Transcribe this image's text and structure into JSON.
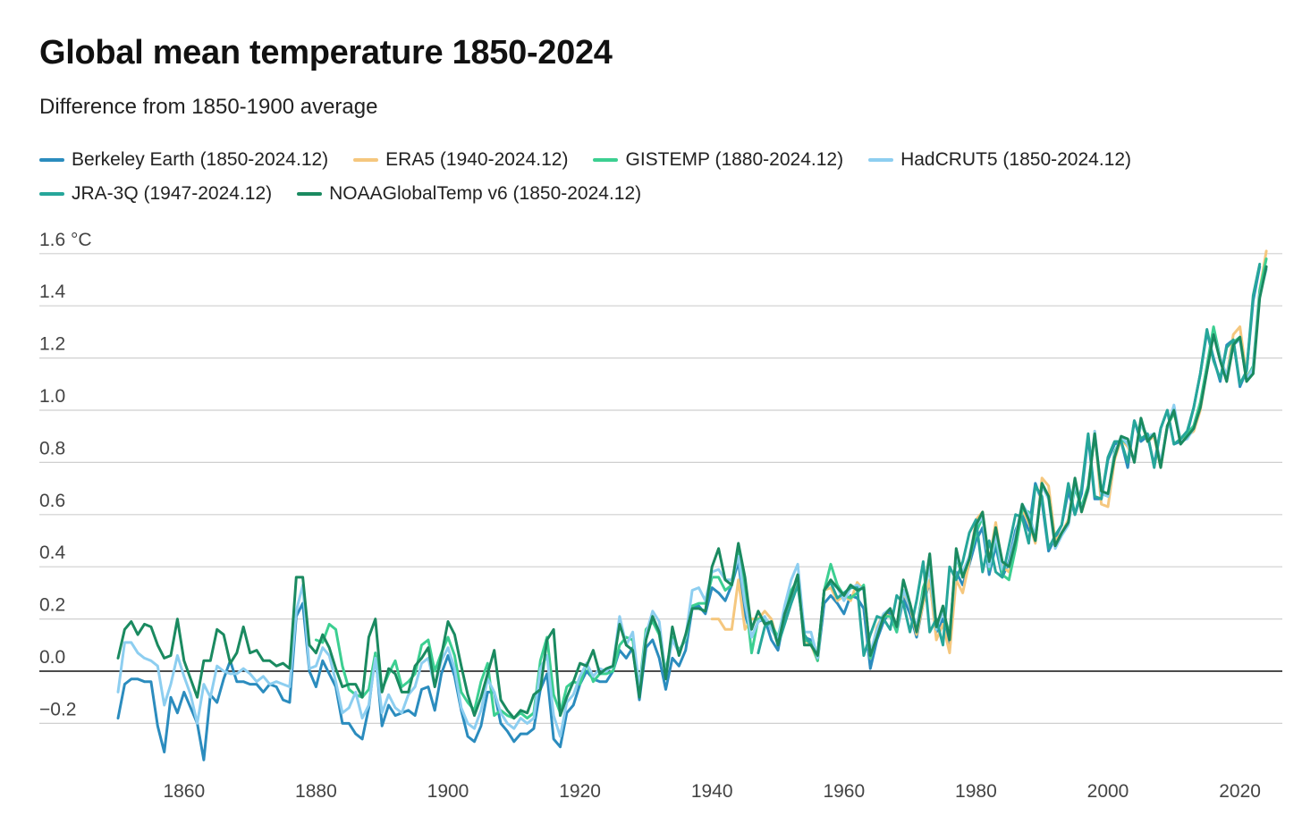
{
  "chart_data": {
    "type": "line",
    "title": "Global mean temperature 1850-2024",
    "subtitle": "Difference from 1850-1900 average",
    "xlabel": "",
    "ylabel": "",
    "y_unit": "°C",
    "xlim": [
      1850,
      2024
    ],
    "ylim": [
      -0.3,
      1.6
    ],
    "y_ticks": [
      -0.2,
      0.0,
      0.2,
      0.4,
      0.6,
      0.8,
      1.0,
      1.2,
      1.4,
      1.6
    ],
    "y_tick_labels": [
      "−0.2",
      "0.0",
      "0.2",
      "0.4",
      "0.6",
      "0.8",
      "1.0",
      "1.2",
      "1.4",
      "1.6 °C"
    ],
    "x_ticks": [
      1860,
      1880,
      1900,
      1920,
      1940,
      1960,
      1980,
      2000,
      2020
    ],
    "x_tick_labels": [
      "1860",
      "1880",
      "1900",
      "1920",
      "1940",
      "1960",
      "1980",
      "2000",
      "2020"
    ],
    "grid": true,
    "legend_position": "top",
    "series": [
      {
        "name": "Berkeley Earth (1850-2024.12)",
        "color": "#2b8cbe",
        "x_start": 1850,
        "values": [
          -0.18,
          -0.05,
          -0.03,
          -0.03,
          -0.04,
          -0.04,
          -0.21,
          -0.31,
          -0.1,
          -0.16,
          -0.08,
          -0.14,
          -0.2,
          -0.34,
          -0.09,
          -0.12,
          -0.03,
          0.04,
          -0.04,
          -0.04,
          -0.05,
          -0.05,
          -0.08,
          -0.05,
          -0.06,
          -0.11,
          -0.12,
          0.21,
          0.26,
          0.0,
          -0.06,
          0.04,
          -0.01,
          -0.06,
          -0.2,
          -0.2,
          -0.24,
          -0.26,
          -0.14,
          0.07,
          -0.21,
          -0.13,
          -0.17,
          -0.16,
          -0.15,
          -0.17,
          -0.07,
          -0.06,
          -0.15,
          -0.01,
          0.06,
          -0.02,
          -0.15,
          -0.25,
          -0.27,
          -0.21,
          -0.08,
          -0.08,
          -0.2,
          -0.23,
          -0.27,
          -0.24,
          -0.24,
          -0.22,
          -0.07,
          -0.01,
          -0.26,
          -0.29,
          -0.16,
          -0.13,
          -0.05,
          0.0,
          -0.03,
          -0.04,
          -0.04,
          0.0,
          0.08,
          0.05,
          0.09,
          -0.11,
          0.09,
          0.12,
          0.05,
          -0.07,
          0.05,
          0.02,
          0.08,
          0.24,
          0.25,
          0.22,
          0.32,
          0.3,
          0.27,
          0.33,
          0.42,
          0.22,
          0.13,
          0.19,
          0.2,
          0.12,
          0.08,
          0.21,
          0.3,
          0.35,
          0.13,
          0.12,
          0.04,
          0.26,
          0.29,
          0.26,
          0.22,
          0.29,
          0.28,
          0.24,
          0.01,
          0.12,
          0.19,
          0.23,
          0.15,
          0.28,
          0.22,
          0.13,
          0.26,
          0.34,
          0.15,
          0.2,
          0.1,
          0.38,
          0.33,
          0.41,
          0.5,
          0.55,
          0.37,
          0.48,
          0.36,
          0.42,
          0.54,
          0.6,
          0.54,
          0.72,
          0.65,
          0.46,
          0.51,
          0.56,
          0.69,
          0.6,
          0.68,
          0.9,
          0.66,
          0.66,
          0.81,
          0.87,
          0.88,
          0.78,
          0.96,
          0.88,
          0.9,
          0.79,
          0.93,
          1.0,
          0.87,
          0.88,
          0.91,
          1.01,
          1.14,
          1.3,
          1.2,
          1.11,
          1.25,
          1.27,
          1.09,
          1.15,
          1.42,
          1.55
        ]
      },
      {
        "name": "ERA5 (1940-2024.12)",
        "color": "#f5c77e",
        "x_start": 1940,
        "values": [
          0.2,
          0.2,
          0.16,
          0.16,
          0.35,
          0.16,
          0.2,
          0.2,
          0.23,
          0.2,
          0.11,
          0.22,
          0.29,
          0.35,
          0.12,
          0.1,
          0.04,
          0.31,
          0.32,
          0.27,
          0.29,
          0.27,
          0.34,
          0.31,
          0.05,
          0.17,
          0.22,
          0.21,
          0.17,
          0.3,
          0.25,
          0.14,
          0.26,
          0.35,
          0.12,
          0.18,
          0.07,
          0.35,
          0.3,
          0.42,
          0.58,
          0.61,
          0.42,
          0.57,
          0.4,
          0.38,
          0.47,
          0.62,
          0.57,
          0.49,
          0.74,
          0.71,
          0.5,
          0.53,
          0.58,
          0.73,
          0.61,
          0.69,
          0.92,
          0.64,
          0.63,
          0.81,
          0.89,
          0.86,
          0.81,
          0.96,
          0.88,
          0.9,
          0.78,
          0.94,
          0.99,
          0.89,
          0.9,
          0.92,
          1.0,
          1.15,
          1.31,
          1.2,
          1.13,
          1.29,
          1.32,
          1.13,
          1.16,
          1.46,
          1.61
        ]
      },
      {
        "name": "GISTEMP (1880-2024.12)",
        "color": "#3ccf91",
        "x_start": 1880,
        "values": [
          0.12,
          0.11,
          0.18,
          0.16,
          0.02,
          -0.07,
          -0.09,
          -0.1,
          -0.07,
          0.07,
          -0.07,
          -0.01,
          0.04,
          -0.06,
          -0.04,
          -0.01,
          0.1,
          0.12,
          0.0,
          0.07,
          0.13,
          0.06,
          -0.08,
          -0.12,
          -0.15,
          -0.04,
          0.03,
          -0.17,
          -0.15,
          -0.17,
          -0.18,
          -0.16,
          -0.18,
          -0.16,
          0.04,
          0.13,
          -0.09,
          -0.16,
          -0.06,
          -0.04,
          -0.05,
          0.03,
          -0.04,
          -0.01,
          -0.01,
          0.0,
          0.1,
          0.13,
          0.12,
          -0.06,
          0.16,
          0.19,
          0.14,
          0.0,
          0.13,
          0.08,
          0.12,
          0.25,
          0.26,
          0.26,
          0.36,
          0.36,
          0.31,
          0.33,
          0.47,
          0.3,
          0.07,
          0.2,
          0.2,
          0.18,
          0.13,
          0.24,
          0.31,
          0.35,
          0.12,
          0.11,
          0.04,
          0.31,
          0.41,
          0.33,
          0.29,
          0.28,
          0.3,
          0.33,
          0.05,
          0.14,
          0.21,
          0.21,
          0.15,
          0.31,
          0.26,
          0.16,
          0.32,
          0.39,
          0.16,
          0.23,
          0.14,
          0.44,
          0.36,
          0.43,
          0.53,
          0.59,
          0.39,
          0.51,
          0.37,
          0.35,
          0.47,
          0.62,
          0.61,
          0.5,
          0.72,
          0.67,
          0.48,
          0.53,
          0.57,
          0.7,
          0.63,
          0.71,
          0.91,
          0.68,
          0.67,
          0.84,
          0.89,
          0.87,
          0.81,
          0.95,
          0.89,
          0.91,
          0.79,
          0.94,
          0.99,
          0.89,
          0.91,
          0.94,
          1.03,
          1.17,
          1.32,
          1.2,
          1.13,
          1.26,
          1.28,
          1.12,
          1.17,
          1.46,
          1.58
        ]
      },
      {
        "name": "HadCRUT5 (1850-2024.12)",
        "color": "#8dcef0",
        "x_start": 1850,
        "values": [
          -0.08,
          0.11,
          0.11,
          0.07,
          0.05,
          0.04,
          0.02,
          -0.13,
          -0.05,
          0.06,
          -0.02,
          -0.09,
          -0.2,
          -0.05,
          -0.1,
          0.02,
          0.0,
          -0.01,
          -0.01,
          0.01,
          -0.01,
          -0.04,
          -0.02,
          -0.05,
          -0.04,
          -0.05,
          -0.06,
          0.23,
          0.33,
          0.01,
          0.02,
          0.09,
          0.06,
          -0.04,
          -0.16,
          -0.14,
          -0.08,
          -0.18,
          -0.13,
          0.05,
          -0.16,
          -0.09,
          -0.14,
          -0.16,
          -0.09,
          -0.06,
          0.03,
          0.05,
          -0.06,
          0.04,
          0.09,
          0.01,
          -0.14,
          -0.2,
          -0.22,
          -0.15,
          -0.03,
          -0.08,
          -0.16,
          -0.2,
          -0.22,
          -0.18,
          -0.2,
          -0.18,
          0.01,
          0.06,
          -0.17,
          -0.25,
          -0.12,
          -0.09,
          -0.02,
          0.03,
          -0.02,
          0.01,
          0.0,
          0.02,
          0.21,
          0.1,
          0.15,
          -0.07,
          0.14,
          0.23,
          0.19,
          -0.02,
          0.12,
          0.07,
          0.13,
          0.31,
          0.32,
          0.27,
          0.38,
          0.39,
          0.35,
          0.35,
          0.44,
          0.26,
          0.13,
          0.19,
          0.21,
          0.16,
          0.12,
          0.25,
          0.35,
          0.41,
          0.15,
          0.15,
          0.05,
          0.31,
          0.34,
          0.32,
          0.27,
          0.32,
          0.33,
          0.31,
          0.07,
          0.16,
          0.22,
          0.24,
          0.17,
          0.31,
          0.25,
          0.17,
          0.29,
          0.4,
          0.16,
          0.23,
          0.13,
          0.44,
          0.38,
          0.44,
          0.56,
          0.59,
          0.4,
          0.52,
          0.39,
          0.41,
          0.52,
          0.64,
          0.6,
          0.52,
          0.71,
          0.66,
          0.47,
          0.52,
          0.56,
          0.72,
          0.62,
          0.69,
          0.92,
          0.68,
          0.67,
          0.83,
          0.9,
          0.87,
          0.81,
          0.95,
          0.9,
          0.91,
          0.8,
          0.93,
          1.02,
          0.88,
          0.89,
          0.93,
          1.01,
          1.15,
          1.29,
          1.2,
          1.13,
          1.25,
          1.27,
          1.12,
          1.16,
          1.44,
          1.54
        ]
      },
      {
        "name": "JRA-3Q (1947-2024.12)",
        "color": "#26a69a",
        "x_start": 1947,
        "values": [
          0.07,
          0.17,
          0.19,
          0.1,
          0.18,
          0.26,
          0.33,
          0.14,
          0.1,
          0.06,
          0.31,
          0.34,
          0.28,
          0.3,
          0.32,
          0.32,
          0.06,
          0.14,
          0.21,
          0.2,
          0.16,
          0.29,
          0.26,
          0.15,
          0.27,
          0.42,
          0.15,
          0.2,
          0.1,
          0.4,
          0.35,
          0.42,
          0.53,
          0.58,
          0.38,
          0.5,
          0.38,
          0.36,
          0.48,
          0.6,
          0.59,
          0.49,
          0.71,
          0.67,
          0.47,
          0.52,
          0.56,
          0.72,
          0.6,
          0.7,
          0.91,
          0.67,
          0.66,
          0.82,
          0.88,
          0.88,
          0.8,
          0.96,
          0.89,
          0.91,
          0.78,
          0.93,
          1.0,
          0.87,
          0.89,
          0.92,
          1.01,
          1.14,
          1.31,
          1.19,
          1.12,
          1.24,
          1.27,
          1.1,
          1.15,
          1.44,
          1.56
        ]
      },
      {
        "name": "NOAAGlobalTemp v6 (1850-2024.12)",
        "color": "#1a8a60",
        "x_start": 1850,
        "values": [
          0.05,
          0.16,
          0.19,
          0.14,
          0.18,
          0.17,
          0.1,
          0.05,
          0.06,
          0.2,
          0.04,
          -0.03,
          -0.1,
          0.04,
          0.04,
          0.16,
          0.14,
          0.03,
          0.07,
          0.17,
          0.07,
          0.08,
          0.04,
          0.04,
          0.02,
          0.03,
          0.01,
          0.36,
          0.36,
          0.1,
          0.07,
          0.14,
          0.09,
          0.01,
          -0.06,
          -0.05,
          -0.05,
          -0.1,
          0.13,
          0.2,
          -0.08,
          0.01,
          -0.01,
          -0.08,
          -0.08,
          0.02,
          0.05,
          0.09,
          -0.06,
          0.06,
          0.19,
          0.14,
          0.02,
          -0.09,
          -0.17,
          -0.1,
          -0.01,
          0.08,
          -0.11,
          -0.15,
          -0.18,
          -0.15,
          -0.16,
          -0.09,
          -0.07,
          0.12,
          0.16,
          -0.17,
          -0.1,
          -0.04,
          0.03,
          0.02,
          0.08,
          -0.01,
          0.01,
          0.02,
          0.18,
          0.1,
          0.08,
          -0.1,
          0.12,
          0.21,
          0.15,
          -0.03,
          0.17,
          0.06,
          0.14,
          0.24,
          0.24,
          0.23,
          0.4,
          0.47,
          0.35,
          0.33,
          0.49,
          0.36,
          0.16,
          0.23,
          0.18,
          0.19,
          0.1,
          0.22,
          0.29,
          0.37,
          0.1,
          0.1,
          0.06,
          0.31,
          0.35,
          0.32,
          0.29,
          0.33,
          0.31,
          0.32,
          0.06,
          0.13,
          0.21,
          0.24,
          0.17,
          0.35,
          0.26,
          0.15,
          0.28,
          0.45,
          0.17,
          0.25,
          0.12,
          0.47,
          0.36,
          0.43,
          0.56,
          0.61,
          0.42,
          0.55,
          0.42,
          0.4,
          0.5,
          0.64,
          0.58,
          0.5,
          0.72,
          0.67,
          0.48,
          0.53,
          0.57,
          0.74,
          0.61,
          0.7,
          0.91,
          0.69,
          0.68,
          0.82,
          0.9,
          0.89,
          0.8,
          0.97,
          0.88,
          0.91,
          0.78,
          0.94,
          1.0,
          0.87,
          0.9,
          0.93,
          1.01,
          1.15,
          1.29,
          1.19,
          1.11,
          1.25,
          1.28,
          1.11,
          1.14,
          1.43,
          1.55
        ]
      }
    ]
  }
}
